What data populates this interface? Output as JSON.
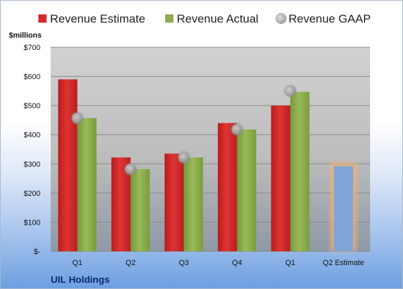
{
  "chart_data": {
    "type": "bar",
    "categories": [
      "Q1",
      "Q2",
      "Q3",
      "Q4",
      "Q1",
      "Q2 Estimate"
    ],
    "series": [
      {
        "name": "Revenue Estimate",
        "values": [
          590,
          322,
          335,
          440,
          500,
          null
        ],
        "color": "#d42a2a"
      },
      {
        "name": "Revenue Actual",
        "values": [
          457,
          282,
          322,
          418,
          547,
          null
        ],
        "color": "#8cae4c"
      },
      {
        "name": "Revenue GAAP",
        "values": [
          457,
          282,
          322,
          418,
          550,
          null
        ],
        "color": "#a8a8a8",
        "marker": "circle"
      }
    ],
    "projection": {
      "category": "Q2 Estimate",
      "value": 292,
      "color": "#7fa6d6",
      "glow": "#f5b070"
    },
    "ylabel": "$millions",
    "ylim": [
      0,
      700
    ],
    "yticks": [
      0,
      100,
      200,
      300,
      400,
      500,
      600,
      700
    ],
    "ytick_labels": [
      "$-",
      "$100",
      "$200",
      "$300",
      "$400",
      "$500",
      "$600",
      "$700"
    ],
    "grid": true,
    "legend_position": "top",
    "company": "UIL Holdings"
  }
}
